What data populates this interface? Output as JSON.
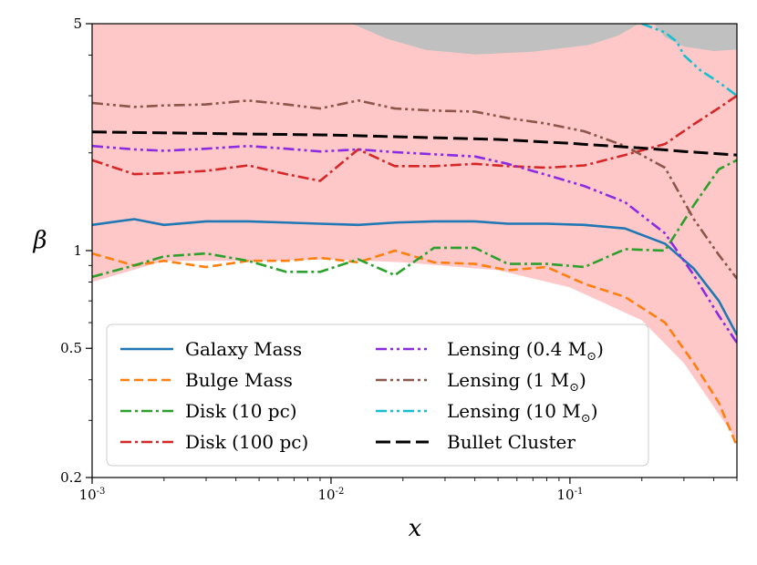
{
  "chart_data": {
    "type": "line",
    "title": "",
    "xlabel": "x",
    "ylabel": "β",
    "xscale": "log",
    "yscale": "log",
    "xlim": [
      0.001,
      0.5
    ],
    "ylim": [
      0.2,
      5
    ],
    "grid": false,
    "legend_location": "lower-left",
    "x_ticks": [
      {
        "value": 0.001,
        "base": "10",
        "exp": "-3"
      },
      {
        "value": 0.01,
        "base": "10",
        "exp": "-2"
      },
      {
        "value": 0.1,
        "base": "10",
        "exp": "-1"
      }
    ],
    "y_ticks": [
      {
        "value": 0.2,
        "label": "0.2"
      },
      {
        "value": 0.5,
        "label": "0.5"
      },
      {
        "value": 1,
        "label": "1"
      },
      {
        "value": 5,
        "label": "5"
      }
    ],
    "shaded_regions": [
      {
        "name": "allowed-band",
        "color": "#ffc8c8",
        "upper": [
          [
            0.001,
            5
          ],
          [
            0.5,
            5
          ]
        ],
        "lower": [
          [
            0.001,
            0.8
          ],
          [
            0.002,
            0.93
          ],
          [
            0.005,
            0.93
          ],
          [
            0.01,
            0.94
          ],
          [
            0.02,
            0.92
          ],
          [
            0.05,
            0.87
          ],
          [
            0.1,
            0.77
          ],
          [
            0.2,
            0.61
          ],
          [
            0.3,
            0.45
          ],
          [
            0.5,
            0.26
          ]
        ]
      },
      {
        "name": "excluded-top-region",
        "color": "#c0c0c0",
        "points": [
          [
            0.0122,
            5
          ],
          [
            0.6,
            5
          ],
          [
            0.6,
            4.2
          ],
          [
            0.4,
            4.12
          ],
          [
            0.3,
            4.25
          ],
          [
            0.25,
            4.55
          ],
          [
            0.225,
            5
          ],
          [
            0.19,
            4.95
          ],
          [
            0.16,
            4.6
          ],
          [
            0.12,
            4.3
          ],
          [
            0.07,
            4.1
          ],
          [
            0.04,
            4.02
          ],
          [
            0.025,
            4.15
          ],
          [
            0.017,
            4.5
          ],
          [
            0.0135,
            4.85
          ]
        ]
      }
    ],
    "series": [
      {
        "name": "Galaxy Mass",
        "color": "#1f77b4",
        "dash": "solid",
        "points": [
          [
            0.001,
            1.2
          ],
          [
            0.0015,
            1.25
          ],
          [
            0.002,
            1.2
          ],
          [
            0.003,
            1.23
          ],
          [
            0.0045,
            1.23
          ],
          [
            0.0065,
            1.22
          ],
          [
            0.009,
            1.21
          ],
          [
            0.013,
            1.2
          ],
          [
            0.0185,
            1.22
          ],
          [
            0.027,
            1.23
          ],
          [
            0.04,
            1.23
          ],
          [
            0.055,
            1.21
          ],
          [
            0.08,
            1.21
          ],
          [
            0.115,
            1.2
          ],
          [
            0.17,
            1.17
          ],
          [
            0.25,
            1.05
          ],
          [
            0.33,
            0.88
          ],
          [
            0.42,
            0.7
          ],
          [
            0.5,
            0.55
          ]
        ]
      },
      {
        "name": "Bulge Mass",
        "color": "#ff7f0e",
        "dash": "dashed",
        "points": [
          [
            0.001,
            0.98
          ],
          [
            0.0015,
            0.9
          ],
          [
            0.002,
            0.93
          ],
          [
            0.003,
            0.89
          ],
          [
            0.0045,
            0.93
          ],
          [
            0.0065,
            0.93
          ],
          [
            0.009,
            0.95
          ],
          [
            0.013,
            0.92
          ],
          [
            0.0185,
            1.0
          ],
          [
            0.027,
            0.92
          ],
          [
            0.04,
            0.91
          ],
          [
            0.055,
            0.87
          ],
          [
            0.08,
            0.89
          ],
          [
            0.115,
            0.79
          ],
          [
            0.17,
            0.72
          ],
          [
            0.25,
            0.6
          ],
          [
            0.33,
            0.45
          ],
          [
            0.42,
            0.34
          ],
          [
            0.5,
            0.25
          ]
        ]
      },
      {
        "name": "Disk (10 pc)",
        "color": "#2ca02c",
        "dash": "dashdot",
        "points": [
          [
            0.001,
            0.83
          ],
          [
            0.0015,
            0.9
          ],
          [
            0.002,
            0.96
          ],
          [
            0.003,
            0.98
          ],
          [
            0.0045,
            0.93
          ],
          [
            0.0065,
            0.86
          ],
          [
            0.009,
            0.86
          ],
          [
            0.013,
            0.94
          ],
          [
            0.0185,
            0.84
          ],
          [
            0.027,
            1.02
          ],
          [
            0.04,
            1.02
          ],
          [
            0.055,
            0.91
          ],
          [
            0.08,
            0.91
          ],
          [
            0.115,
            0.89
          ],
          [
            0.17,
            1.01
          ],
          [
            0.25,
            1.0
          ],
          [
            0.33,
            1.38
          ],
          [
            0.42,
            1.78
          ],
          [
            0.5,
            1.9
          ]
        ]
      },
      {
        "name": "Disk (100 pc)",
        "color": "#d62728",
        "dash": "dashdot",
        "points": [
          [
            0.001,
            1.9
          ],
          [
            0.0015,
            1.72
          ],
          [
            0.002,
            1.73
          ],
          [
            0.003,
            1.76
          ],
          [
            0.0045,
            1.83
          ],
          [
            0.0065,
            1.72
          ],
          [
            0.009,
            1.64
          ],
          [
            0.013,
            2.05
          ],
          [
            0.0185,
            1.82
          ],
          [
            0.027,
            1.82
          ],
          [
            0.04,
            1.85
          ],
          [
            0.055,
            1.82
          ],
          [
            0.08,
            1.8
          ],
          [
            0.115,
            1.83
          ],
          [
            0.17,
            1.97
          ],
          [
            0.25,
            2.13
          ],
          [
            0.33,
            2.45
          ],
          [
            0.42,
            2.75
          ],
          [
            0.5,
            3.0
          ]
        ]
      },
      {
        "name": "Lensing (0.4 M⊙)",
        "color": "#8a2be2",
        "dash": "dashdotdot",
        "points": [
          [
            0.001,
            2.1
          ],
          [
            0.0015,
            2.05
          ],
          [
            0.002,
            2.03
          ],
          [
            0.003,
            2.06
          ],
          [
            0.0045,
            2.1
          ],
          [
            0.0065,
            2.06
          ],
          [
            0.009,
            2.02
          ],
          [
            0.013,
            2.05
          ],
          [
            0.0185,
            2.01
          ],
          [
            0.027,
            1.98
          ],
          [
            0.04,
            1.95
          ],
          [
            0.055,
            1.85
          ],
          [
            0.08,
            1.71
          ],
          [
            0.115,
            1.58
          ],
          [
            0.17,
            1.41
          ],
          [
            0.25,
            1.13
          ],
          [
            0.33,
            0.84
          ],
          [
            0.42,
            0.63
          ],
          [
            0.5,
            0.52
          ]
        ]
      },
      {
        "name": "Lensing (1 M⊙)",
        "color": "#8c564b",
        "dash": "dashdotdot",
        "points": [
          [
            0.001,
            2.85
          ],
          [
            0.0015,
            2.77
          ],
          [
            0.002,
            2.8
          ],
          [
            0.003,
            2.82
          ],
          [
            0.0045,
            2.9
          ],
          [
            0.0065,
            2.82
          ],
          [
            0.009,
            2.74
          ],
          [
            0.013,
            2.9
          ],
          [
            0.0185,
            2.74
          ],
          [
            0.027,
            2.7
          ],
          [
            0.04,
            2.68
          ],
          [
            0.055,
            2.56
          ],
          [
            0.08,
            2.46
          ],
          [
            0.115,
            2.33
          ],
          [
            0.17,
            2.1
          ],
          [
            0.25,
            1.8
          ],
          [
            0.33,
            1.25
          ],
          [
            0.42,
            0.97
          ],
          [
            0.5,
            0.82
          ]
        ]
      },
      {
        "name": "Lensing (10 M⊙)",
        "color": "#17becf",
        "dash": "dashdotdot",
        "points": [
          [
            0.2,
            5.0
          ],
          [
            0.25,
            4.7
          ],
          [
            0.28,
            4.4
          ],
          [
            0.3,
            4.0
          ],
          [
            0.35,
            3.6
          ],
          [
            0.42,
            3.3
          ],
          [
            0.5,
            3.0
          ]
        ]
      },
      {
        "name": "Bullet Cluster",
        "color": "#000000",
        "dash": "longdash",
        "points": [
          [
            0.001,
            2.32
          ],
          [
            0.01,
            2.27
          ],
          [
            0.05,
            2.2
          ],
          [
            0.1,
            2.14
          ],
          [
            0.2,
            2.07
          ],
          [
            0.3,
            2.02
          ],
          [
            0.5,
            1.97
          ]
        ]
      }
    ],
    "legend": {
      "left": [
        "Galaxy Mass",
        "Bulge Mass",
        "Disk (10 pc)",
        "Disk (100 pc)"
      ],
      "right": [
        "Lensing (0.4 M⊙)",
        "Lensing (1 M⊙)",
        "Lensing (10 M⊙)",
        "Bullet Cluster"
      ],
      "display": [
        {
          "main": "Galaxy Mass",
          "sub": ""
        },
        {
          "main": "Bulge Mass",
          "sub": ""
        },
        {
          "main": "Disk (10 pc)",
          "sub": ""
        },
        {
          "main": "Disk (100 pc)",
          "sub": ""
        },
        {
          "main": "Lensing (0.4 M",
          "sub": "⊙",
          "suffix": ")"
        },
        {
          "main": "Lensing (1 M",
          "sub": "⊙",
          "suffix": ")"
        },
        {
          "main": "Lensing (10 M",
          "sub": "⊙",
          "suffix": ")"
        },
        {
          "main": "Bullet Cluster",
          "sub": ""
        }
      ]
    }
  }
}
